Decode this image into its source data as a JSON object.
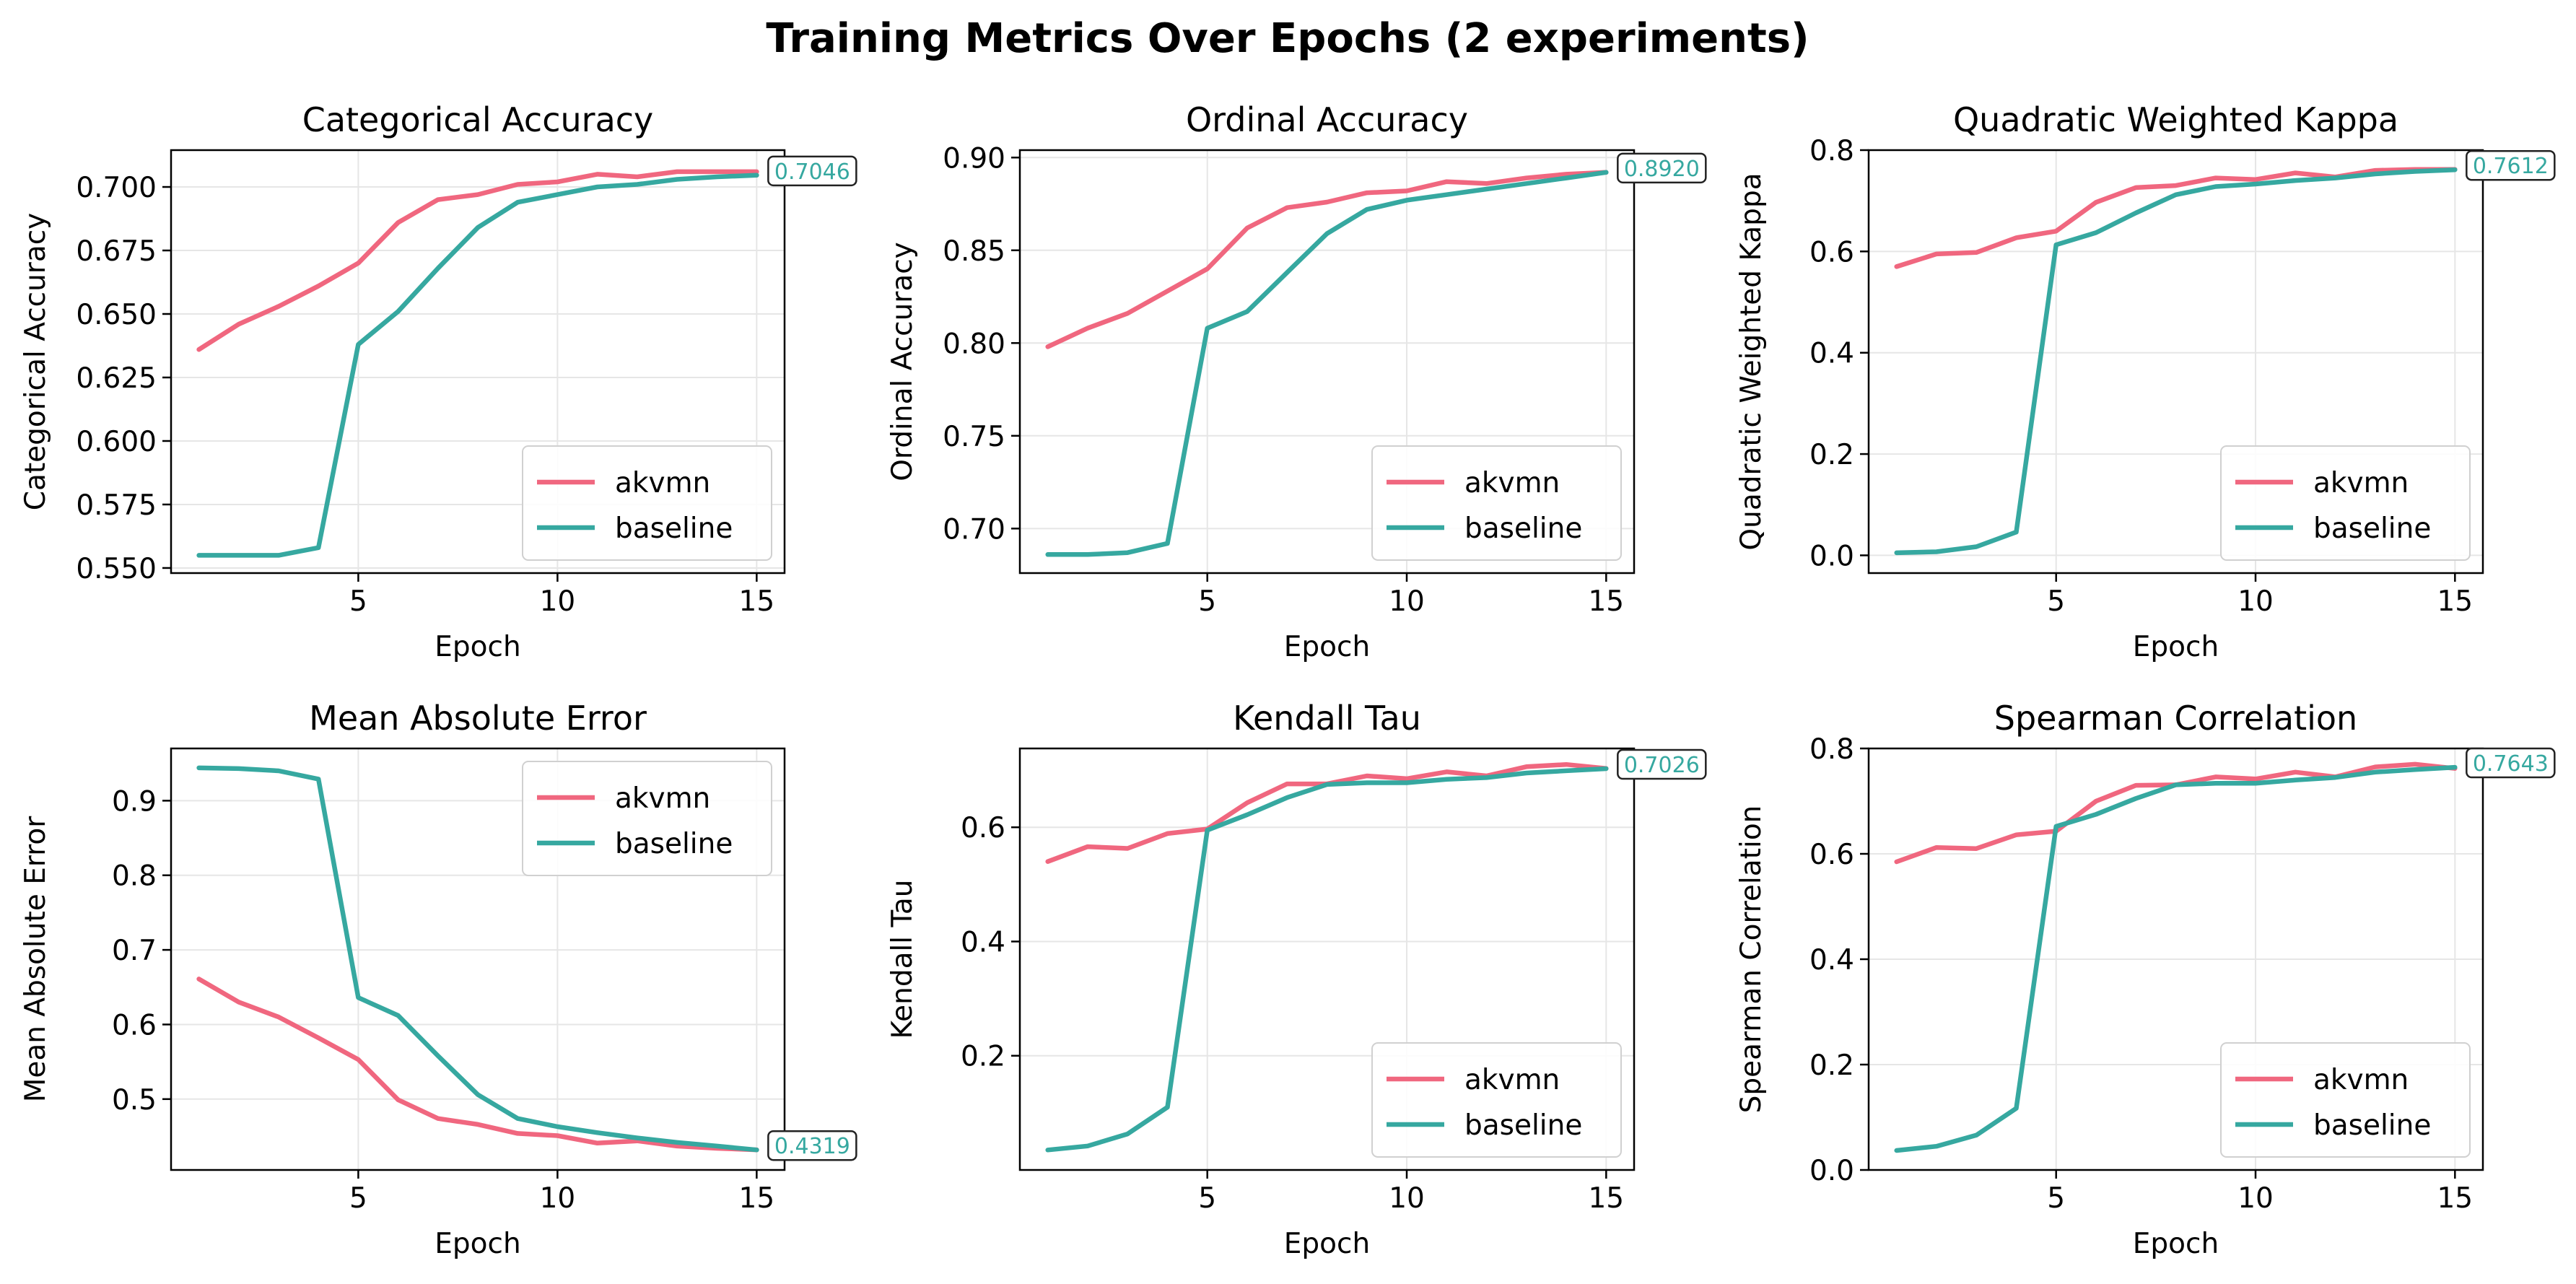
{
  "figure": {
    "title": "Training Metrics Over Epochs (2 experiments)"
  },
  "colors": {
    "akvmn": "#f0677f",
    "baseline": "#36a8a0",
    "grid": "#e6e6e6",
    "axes": "#000000"
  },
  "chart_data": [
    {
      "type": "line",
      "title": "Categorical Accuracy",
      "xlabel": "Epoch",
      "ylabel": "Categorical Accuracy",
      "xlim": [
        0.3,
        15.7
      ],
      "ylim": [
        0.548,
        0.7145
      ],
      "xticks": [
        5,
        10,
        15
      ],
      "xtick_labels": [
        "5",
        "10",
        "15"
      ],
      "yticks": [
        0.55,
        0.575,
        0.6,
        0.625,
        0.65,
        0.675,
        0.7
      ],
      "ytick_labels": [
        "0.550",
        "0.575",
        "0.600",
        "0.625",
        "0.650",
        "0.675",
        "0.700"
      ],
      "grid": true,
      "legend_position": "lower-right",
      "annotation": {
        "text": "0.7046",
        "series": "baseline"
      },
      "x": [
        1,
        2,
        3,
        4,
        5,
        6,
        7,
        8,
        9,
        10,
        11,
        12,
        13,
        14,
        15
      ],
      "series": [
        {
          "name": "akvmn",
          "values": [
            0.636,
            0.646,
            0.653,
            0.661,
            0.67,
            0.686,
            0.695,
            0.697,
            0.701,
            0.702,
            0.705,
            0.704,
            0.706,
            0.706,
            0.706
          ]
        },
        {
          "name": "baseline",
          "values": [
            0.555,
            0.555,
            0.555,
            0.558,
            0.638,
            0.651,
            0.668,
            0.684,
            0.694,
            0.697,
            0.7,
            0.701,
            0.703,
            0.704,
            0.7046
          ]
        }
      ]
    },
    {
      "type": "line",
      "title": "Ordinal Accuracy",
      "xlabel": "Epoch",
      "ylabel": "Ordinal Accuracy",
      "xlim": [
        0.3,
        15.7
      ],
      "ylim": [
        0.676,
        0.904
      ],
      "xticks": [
        5,
        10,
        15
      ],
      "xtick_labels": [
        "5",
        "10",
        "15"
      ],
      "yticks": [
        0.7,
        0.75,
        0.8,
        0.85,
        0.9
      ],
      "ytick_labels": [
        "0.70",
        "0.75",
        "0.80",
        "0.85",
        "0.90"
      ],
      "grid": true,
      "legend_position": "lower-right",
      "annotation": {
        "text": "0.8920",
        "series": "baseline"
      },
      "x": [
        1,
        2,
        3,
        4,
        5,
        6,
        7,
        8,
        9,
        10,
        11,
        12,
        13,
        14,
        15
      ],
      "series": [
        {
          "name": "akvmn",
          "values": [
            0.798,
            0.808,
            0.816,
            0.828,
            0.84,
            0.862,
            0.873,
            0.876,
            0.881,
            0.882,
            0.887,
            0.886,
            0.889,
            0.891,
            0.892
          ]
        },
        {
          "name": "baseline",
          "values": [
            0.686,
            0.686,
            0.687,
            0.692,
            0.808,
            0.817,
            0.838,
            0.859,
            0.872,
            0.877,
            0.88,
            0.883,
            0.886,
            0.889,
            0.892
          ]
        }
      ]
    },
    {
      "type": "line",
      "title": "Quadratic Weighted Kappa",
      "xlabel": "Epoch",
      "ylabel": "Quadratic Weighted Kappa",
      "xlim": [
        0.3,
        15.7
      ],
      "ylim": [
        -0.035,
        0.8
      ],
      "xticks": [
        5,
        10,
        15
      ],
      "xtick_labels": [
        "5",
        "10",
        "15"
      ],
      "yticks": [
        0.0,
        0.2,
        0.4,
        0.6,
        0.8
      ],
      "ytick_labels": [
        "0.0",
        "0.2",
        "0.4",
        "0.6",
        "0.8"
      ],
      "grid": true,
      "legend_position": "lower-right",
      "annotation": {
        "text": "0.7612",
        "series": "baseline"
      },
      "x": [
        1,
        2,
        3,
        4,
        5,
        6,
        7,
        8,
        9,
        10,
        11,
        12,
        13,
        14,
        15
      ],
      "series": [
        {
          "name": "akvmn",
          "values": [
            0.57,
            0.595,
            0.598,
            0.627,
            0.64,
            0.697,
            0.726,
            0.73,
            0.745,
            0.742,
            0.755,
            0.747,
            0.76,
            0.762,
            0.762
          ]
        },
        {
          "name": "baseline",
          "values": [
            0.005,
            0.007,
            0.017,
            0.046,
            0.613,
            0.637,
            0.676,
            0.712,
            0.728,
            0.733,
            0.74,
            0.745,
            0.753,
            0.758,
            0.7612
          ]
        }
      ]
    },
    {
      "type": "line",
      "title": "Mean Absolute Error",
      "xlabel": "Epoch",
      "ylabel": "Mean Absolute Error",
      "xlim": [
        0.3,
        15.7
      ],
      "ylim": [
        0.405,
        0.97
      ],
      "xticks": [
        5,
        10,
        15
      ],
      "xtick_labels": [
        "5",
        "10",
        "15"
      ],
      "yticks": [
        0.5,
        0.6,
        0.7,
        0.8,
        0.9
      ],
      "ytick_labels": [
        "0.5",
        "0.6",
        "0.7",
        "0.8",
        "0.9"
      ],
      "grid": true,
      "legend_position": "upper-right",
      "annotation": {
        "text": "0.4319",
        "series": "baseline"
      },
      "x": [
        1,
        2,
        3,
        4,
        5,
        6,
        7,
        8,
        9,
        10,
        11,
        12,
        13,
        14,
        15
      ],
      "series": [
        {
          "name": "akvmn",
          "values": [
            0.661,
            0.63,
            0.61,
            0.582,
            0.553,
            0.499,
            0.474,
            0.466,
            0.454,
            0.451,
            0.441,
            0.444,
            0.437,
            0.434,
            0.432
          ]
        },
        {
          "name": "baseline",
          "values": [
            0.944,
            0.943,
            0.94,
            0.929,
            0.636,
            0.612,
            0.558,
            0.506,
            0.474,
            0.463,
            0.455,
            0.448,
            0.442,
            0.437,
            0.4319
          ]
        }
      ]
    },
    {
      "type": "line",
      "title": "Kendall Tau",
      "xlabel": "Epoch",
      "ylabel": "Kendall Tau",
      "xlim": [
        0.3,
        15.7
      ],
      "ylim": [
        0.0,
        0.738
      ],
      "xticks": [
        5,
        10,
        15
      ],
      "xtick_labels": [
        "5",
        "10",
        "15"
      ],
      "yticks": [
        0.2,
        0.4,
        0.6
      ],
      "ytick_labels": [
        "0.2",
        "0.4",
        "0.6"
      ],
      "grid": true,
      "legend_position": "lower-right",
      "annotation": {
        "text": "0.7026",
        "series": "baseline"
      },
      "x": [
        1,
        2,
        3,
        4,
        5,
        6,
        7,
        8,
        9,
        10,
        11,
        12,
        13,
        14,
        15
      ],
      "series": [
        {
          "name": "akvmn",
          "values": [
            0.54,
            0.566,
            0.563,
            0.589,
            0.597,
            0.643,
            0.676,
            0.676,
            0.69,
            0.685,
            0.697,
            0.69,
            0.706,
            0.71,
            0.703
          ]
        },
        {
          "name": "baseline",
          "values": [
            0.035,
            0.042,
            0.063,
            0.11,
            0.595,
            0.622,
            0.652,
            0.675,
            0.678,
            0.678,
            0.684,
            0.687,
            0.695,
            0.699,
            0.7026
          ]
        }
      ]
    },
    {
      "type": "line",
      "title": "Spearman Correlation",
      "xlabel": "Epoch",
      "ylabel": "Spearman Correlation",
      "xlim": [
        0.3,
        15.7
      ],
      "ylim": [
        0.0,
        0.8
      ],
      "xticks": [
        5,
        10,
        15
      ],
      "xtick_labels": [
        "5",
        "10",
        "15"
      ],
      "yticks": [
        0.0,
        0.2,
        0.4,
        0.6,
        0.8
      ],
      "ytick_labels": [
        "0.0",
        "0.2",
        "0.4",
        "0.6",
        "0.8"
      ],
      "grid": true,
      "legend_position": "lower-right",
      "annotation": {
        "text": "0.7643",
        "series": "baseline"
      },
      "x": [
        1,
        2,
        3,
        4,
        5,
        6,
        7,
        8,
        9,
        10,
        11,
        12,
        13,
        14,
        15
      ],
      "series": [
        {
          "name": "akvmn",
          "values": [
            0.585,
            0.612,
            0.61,
            0.636,
            0.643,
            0.7,
            0.73,
            0.731,
            0.746,
            0.742,
            0.755,
            0.746,
            0.765,
            0.77,
            0.762
          ]
        },
        {
          "name": "baseline",
          "values": [
            0.037,
            0.045,
            0.066,
            0.117,
            0.652,
            0.675,
            0.705,
            0.731,
            0.734,
            0.734,
            0.74,
            0.745,
            0.755,
            0.76,
            0.7643
          ]
        }
      ]
    }
  ]
}
